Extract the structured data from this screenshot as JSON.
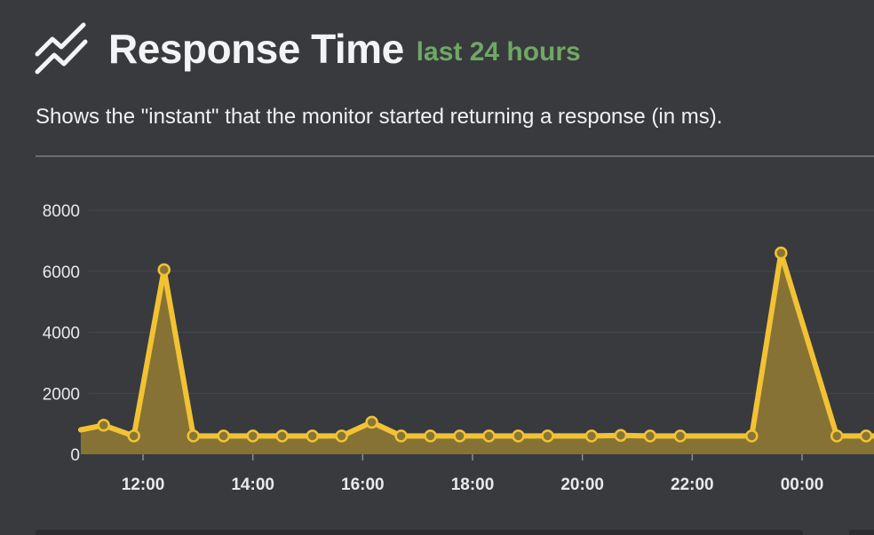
{
  "header": {
    "icon": "line-chart-icon",
    "title": "Response Time",
    "subtitle": "last 24 hours"
  },
  "description": "Shows the \"instant\" that the monitor started returning a response (in ms).",
  "colors": {
    "background": "#383a3d",
    "accent_green": "#6fa865",
    "series_line": "#f2c234",
    "series_fill": "#8a7534",
    "gridline": "#45484c"
  },
  "chart_data": {
    "type": "area",
    "title": "Response Time",
    "xlabel": "",
    "ylabel": "",
    "ylim": [
      0,
      8000
    ],
    "yticks": [
      0,
      2000,
      4000,
      6000,
      8000
    ],
    "ytick_labels": [
      "0",
      "2000",
      "4000",
      "6000",
      "8000"
    ],
    "xlim": [
      "10:52",
      "01:35"
    ],
    "xticks": [
      "12:00",
      "14:00",
      "16:00",
      "18:00",
      "20:00",
      "22:00",
      "00:00"
    ],
    "grid": true,
    "legend": "none",
    "series": [
      {
        "x": [
          "10:52",
          "11:17",
          "11:50",
          "12:23",
          "12:55",
          "13:28",
          "14:00",
          "14:32",
          "15:05",
          "15:37",
          "16:10",
          "16:42",
          "17:14",
          "17:46",
          "18:18",
          "18:50",
          "19:22",
          "20:10",
          "20:42",
          "21:14",
          "21:47",
          "23:05",
          "23:37",
          "00:38",
          "01:10",
          "01:35"
        ],
        "y": [
          800,
          950,
          600,
          6050,
          600,
          600,
          600,
          600,
          600,
          600,
          1050,
          600,
          600,
          600,
          600,
          600,
          600,
          600,
          620,
          600,
          600,
          600,
          6600,
          600,
          600,
          600
        ],
        "markers": [
          false,
          true,
          true,
          true,
          true,
          true,
          true,
          true,
          true,
          true,
          true,
          true,
          true,
          true,
          true,
          true,
          true,
          true,
          true,
          true,
          true,
          true,
          true,
          true,
          true,
          false
        ]
      }
    ]
  }
}
